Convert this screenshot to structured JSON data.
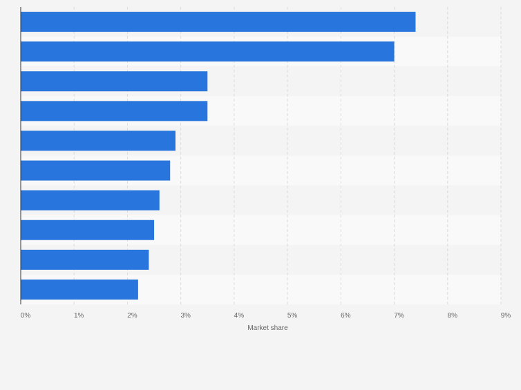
{
  "chart_data": {
    "type": "bar",
    "orientation": "horizontal",
    "categories": [
      "",
      "",
      "",
      "",
      "",
      "",
      "",
      "",
      "",
      ""
    ],
    "values": [
      7.4,
      7.0,
      3.5,
      3.5,
      2.9,
      2.8,
      2.6,
      2.5,
      2.4,
      2.2
    ],
    "xlabel": "Market share",
    "xlim": [
      0,
      9
    ],
    "xticks": [
      "0%",
      "1%",
      "2%",
      "3%",
      "4%",
      "5%",
      "6%",
      "7%",
      "8%",
      "9%"
    ],
    "grid": true,
    "colors": {
      "bar": "#2876dd",
      "band_light": "#f9f9f9",
      "band_dark": "#f4f4f4",
      "grid": "#dcdcdc",
      "axis": "#333333",
      "text": "#666666"
    }
  }
}
